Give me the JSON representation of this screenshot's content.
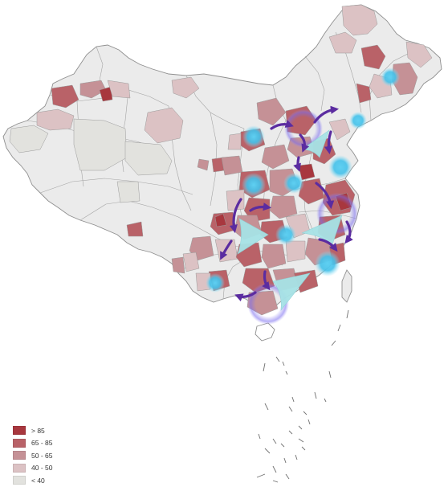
{
  "legend": {
    "items": [
      {
        "label": "> 85",
        "color": "#a8373e"
      },
      {
        "label": "65 - 85",
        "color": "#b96268"
      },
      {
        "label": "50 - 65",
        "color": "#c59196"
      },
      {
        "label": "40 - 50",
        "color": "#dcc2c4"
      },
      {
        "label": "< 40",
        "color": "#e2e2de"
      }
    ]
  },
  "colors": {
    "default_region": "#ebebeb",
    "border": "#9a9a9a",
    "hub_glow": "#3fc0e8",
    "arrow": "#5b2ca0",
    "halo": "#6c5ce7",
    "triangle": "#a7e3e6"
  },
  "icons": {
    "hub": "glowing-circle-icon",
    "flow_arrow": "curved-arrow-icon",
    "flow_triangle": "fan-triangle-icon"
  }
}
